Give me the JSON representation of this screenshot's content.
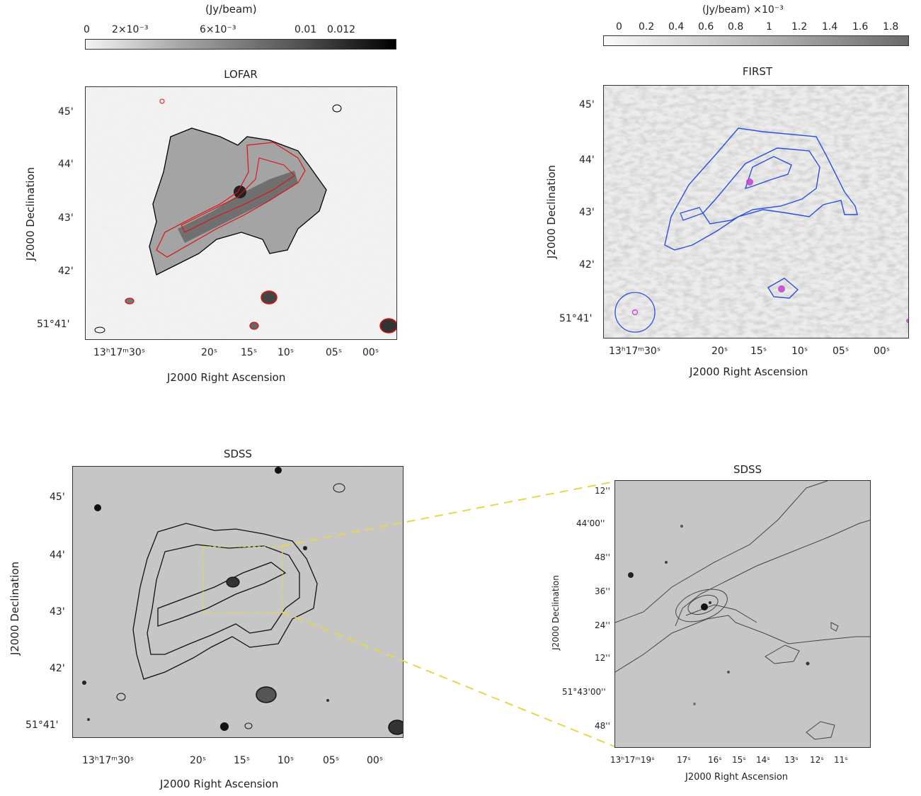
{
  "lofar": {
    "title": "LOFAR",
    "colorbar": {
      "unit": "(Jy/beam)",
      "ticks": [
        "0",
        "2×10⁻³",
        "6×10⁻³",
        "0.01",
        "0.012"
      ]
    },
    "xlabel": "J2000 Right Ascension",
    "ylabel": "J2000 Declination",
    "xticks": [
      "13ʰ17ᵐ30ˢ",
      "20ˢ",
      "15ˢ",
      "10ˢ",
      "05ˢ",
      "00ˢ"
    ],
    "yticks": [
      "45'",
      "44'",
      "43'",
      "42'",
      "51°41'"
    ],
    "contour_colors": [
      "#000000",
      "#e01010"
    ]
  },
  "first": {
    "title": "FIRST",
    "colorbar": {
      "unit": "(Jy/beam)  ×10⁻³",
      "ticks": [
        "0",
        "0.2",
        "0.4",
        "0.6",
        "0.8",
        "1",
        "1.2",
        "1.4",
        "1.6",
        "1.8"
      ]
    },
    "xlabel": "J2000 Right Ascension",
    "ylabel": "J2000 Declination",
    "xticks": [
      "13ʰ17ᵐ30ˢ",
      "20ˢ",
      "15ˢ",
      "10ˢ",
      "05ˢ",
      "00ˢ"
    ],
    "yticks": [
      "45'",
      "44'",
      "43'",
      "42'",
      "51°41'"
    ],
    "contour_colors": [
      "#2a4fe0",
      "#c040d0"
    ]
  },
  "sdss_wide": {
    "title": "SDSS",
    "xlabel": "J2000 Right Ascension",
    "ylabel": "J2000 Declination",
    "xticks": [
      "13ʰ17ᵐ30ˢ",
      "20ˢ",
      "15ˢ",
      "10ˢ",
      "05ˢ",
      "00ˢ"
    ],
    "yticks": [
      "45'",
      "44'",
      "43'",
      "42'",
      "51°41'"
    ],
    "zoom_box_color": "#e6d84a"
  },
  "sdss_zoom": {
    "title": "SDSS",
    "xlabel": "J2000 Right Ascension",
    "ylabel": "J2000 Declination",
    "xticks": [
      "13ʰ17ᵐ19ˢ",
      "17ˢ",
      "16ˢ",
      "15ˢ",
      "14ˢ",
      "13ˢ",
      "12ˢ",
      "11ˢ"
    ],
    "yticks": [
      "12''",
      "44'00''",
      "48''",
      "36''",
      "24''",
      "12''",
      "51°43'00''",
      "48''"
    ]
  }
}
